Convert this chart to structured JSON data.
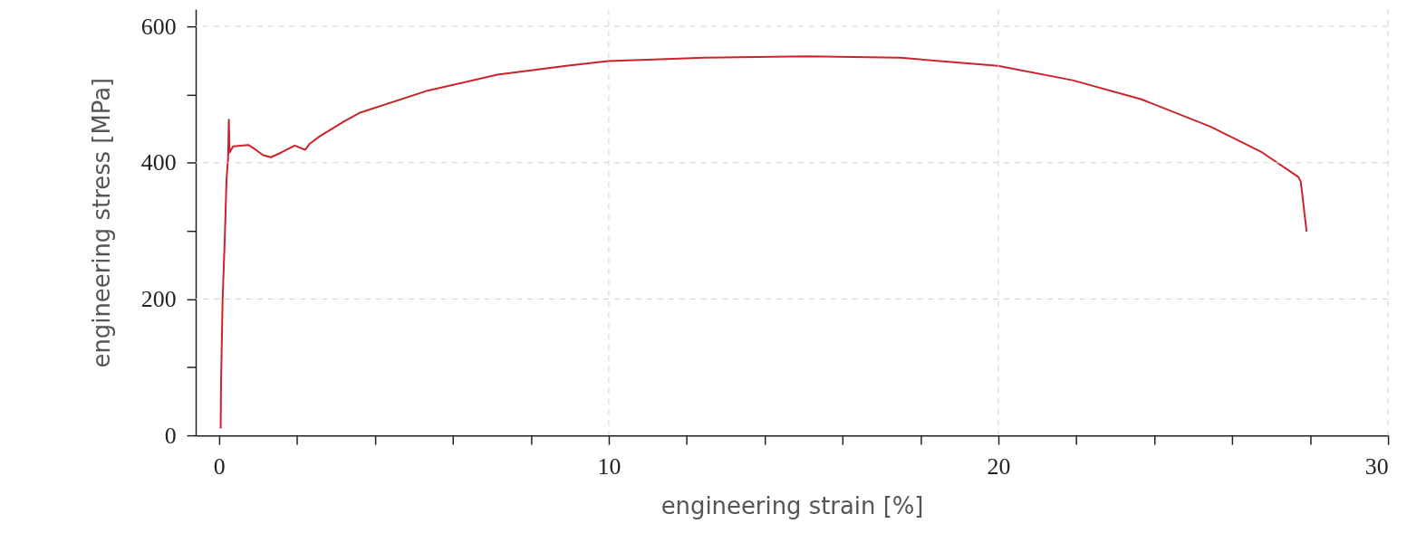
{
  "chart_data": {
    "type": "line",
    "xlabel": "engineering strain [%]",
    "ylabel": "engineering stress [MPa]",
    "x": [
      0.04,
      0.05,
      0.09,
      0.15,
      0.19,
      0.23,
      0.25,
      0.27,
      0.36,
      0.75,
      0.94,
      1.13,
      1.33,
      1.6,
      1.94,
      2.21,
      2.33,
      2.59,
      3.22,
      3.6,
      5.37,
      7.14,
      8.91,
      9.98,
      12.45,
      15.1,
      17.47,
      19.99,
      21.9,
      23.67,
      25.44,
      26.77,
      27.7,
      27.76,
      27.91
    ],
    "series": [
      {
        "color": "#cc2229",
        "values": [
          10,
          76,
          199,
          296,
          375,
          406,
          463,
          415,
          424,
          426,
          419,
          411,
          408,
          415,
          425,
          419,
          428,
          439,
          461,
          473,
          506,
          529,
          542,
          549,
          554,
          556,
          554,
          542,
          521,
          493,
          453,
          415,
          379,
          372,
          299
        ]
      }
    ],
    "xlim": [
      -0.6,
      30
    ],
    "ylim": [
      0,
      625
    ],
    "xticks": [
      0,
      {
        "value": 2,
        "label": null
      },
      {
        "value": 4,
        "label": null
      },
      {
        "value": 6,
        "label": null
      },
      {
        "value": 8,
        "label": null
      },
      10,
      {
        "value": 12,
        "label": null
      },
      {
        "value": 14,
        "label": null
      },
      {
        "value": 16,
        "label": null
      },
      {
        "value": 18,
        "label": null
      },
      20,
      {
        "value": 22,
        "label": null
      },
      {
        "value": 24,
        "label": null
      },
      {
        "value": 26,
        "label": null
      },
      {
        "value": 28,
        "label": null
      },
      30
    ],
    "yticks": [
      0,
      {
        "value": 100,
        "label": null
      },
      200,
      {
        "value": 300,
        "label": null
      },
      400,
      {
        "value": 500,
        "label": null
      },
      600
    ],
    "grid": true,
    "line_style": "solid",
    "marker": "none"
  }
}
